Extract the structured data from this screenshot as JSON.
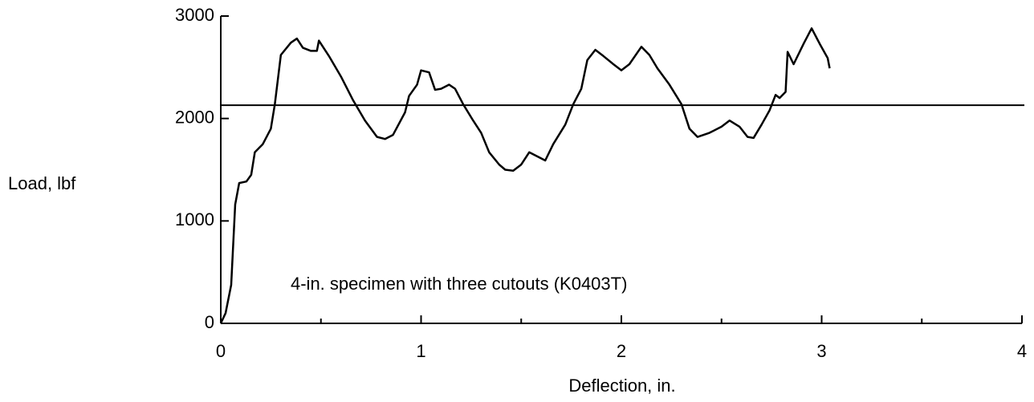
{
  "chart_data": {
    "type": "line",
    "xlabel": "Deflection, in.",
    "ylabel": "Load, lbf",
    "annotation": "4-in. specimen with three cutouts (K0403T)",
    "x": [
      0,
      0.024,
      0.052,
      0.072,
      0.092,
      0.128,
      0.152,
      0.17,
      0.21,
      0.25,
      0.27,
      0.3,
      0.35,
      0.38,
      0.41,
      0.45,
      0.48,
      0.49,
      0.54,
      0.6,
      0.66,
      0.72,
      0.78,
      0.82,
      0.86,
      0.92,
      0.94,
      0.98,
      1.0,
      1.04,
      1.07,
      1.1,
      1.14,
      1.17,
      1.21,
      1.26,
      1.3,
      1.34,
      1.39,
      1.42,
      1.46,
      1.5,
      1.54,
      1.58,
      1.62,
      1.66,
      1.72,
      1.76,
      1.8,
      1.83,
      1.87,
      1.91,
      1.96,
      2.0,
      2.04,
      2.1,
      2.14,
      2.18,
      2.24,
      2.3,
      2.34,
      2.38,
      2.44,
      2.5,
      2.54,
      2.59,
      2.63,
      2.66,
      2.7,
      2.74,
      2.77,
      2.79,
      2.82,
      2.83,
      2.86,
      2.91,
      2.95,
      2.99,
      3.03,
      3.04
    ],
    "series": [
      {
        "color": "#000000",
        "values": [
          0,
          100,
          375,
          1160,
          1370,
          1385,
          1450,
          1670,
          1750,
          1900,
          2140,
          2620,
          2740,
          2780,
          2690,
          2660,
          2660,
          2760,
          2610,
          2410,
          2180,
          1980,
          1820,
          1800,
          1840,
          2060,
          2220,
          2330,
          2470,
          2450,
          2280,
          2290,
          2330,
          2290,
          2140,
          1980,
          1860,
          1670,
          1550,
          1500,
          1490,
          1550,
          1670,
          1630,
          1590,
          1750,
          1940,
          2140,
          2290,
          2570,
          2670,
          2610,
          2530,
          2470,
          2530,
          2700,
          2620,
          2490,
          2330,
          2140,
          1900,
          1820,
          1860,
          1920,
          1980,
          1920,
          1820,
          1810,
          1940,
          2080,
          2230,
          2200,
          2260,
          2650,
          2530,
          2730,
          2880,
          2730,
          2590,
          2490
        ]
      }
    ],
    "hlines": [
      2130
    ],
    "xlim": [
      0,
      4
    ],
    "xticks": [
      0,
      1,
      2,
      3,
      4
    ],
    "xminor_ticks": [
      0.5,
      1.5,
      2.5,
      3.5
    ],
    "ylim": [
      0,
      3000
    ],
    "yticks": [
      0,
      1000,
      2000,
      3000
    ]
  }
}
